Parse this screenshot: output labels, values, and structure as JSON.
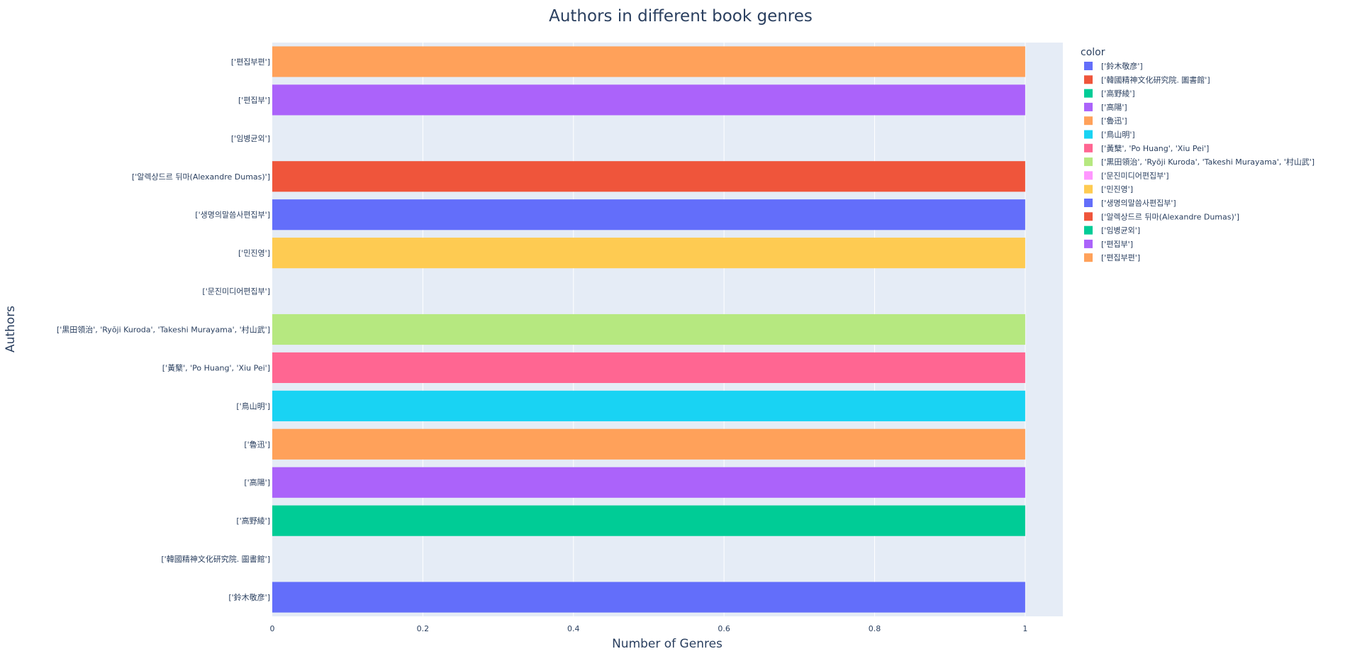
{
  "chart_data": {
    "type": "bar",
    "orientation": "horizontal",
    "title": "Authors in different book genres",
    "xlabel": "Number of Genres",
    "ylabel": "Authors",
    "xlim": [
      0,
      1.05
    ],
    "xticks": [
      "0",
      "0.2",
      "0.4",
      "0.6",
      "0.8",
      "1"
    ],
    "xtick_values": [
      0,
      0.2,
      0.4,
      0.6,
      0.8,
      1
    ],
    "legend_title": "color",
    "legend_position": "right",
    "grid": true,
    "plot_background": "#E5ECF6",
    "categories": [
      "['鈴木敬彦']",
      "['韓國精神文化研究院. 圖書館']",
      "['高野綾']",
      "['高陽']",
      "['魯迅']",
      "['鳥山明']",
      "['黃櫱', 'Po Huang', 'Xiu Pei']",
      "['黒田領治', 'Ryōji Kuroda', 'Takeshi Murayama', '村山武']",
      "['문진미디어편집부']",
      "['민진영']",
      "['생명의말씀사편집부']",
      "['알렉상드르 뒤마(Alexandre Dumas)']",
      "['임병균외']",
      "['편집부']",
      "['편집부편']"
    ],
    "values": [
      1,
      0,
      1,
      1,
      1,
      1,
      1,
      1,
      0,
      1,
      1,
      1,
      0,
      1,
      1
    ],
    "colors": [
      "#636efa",
      "#EF553B",
      "#00cc96",
      "#ab63fa",
      "#FFA15A",
      "#19d3f3",
      "#FF6692",
      "#B6E880",
      "#FF97FF",
      "#FECB52",
      "#636efa",
      "#EF553B",
      "#00cc96",
      "#ab63fa",
      "#FFA15A"
    ]
  }
}
